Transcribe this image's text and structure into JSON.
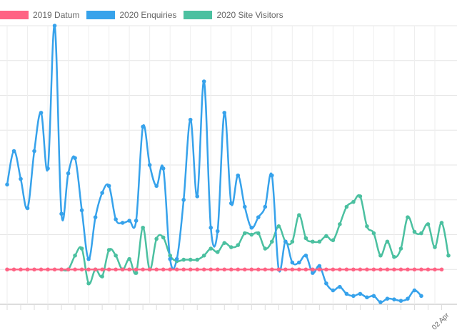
{
  "chart_data": {
    "type": "line",
    "title": "",
    "xlabel": "",
    "ylabel": "",
    "ylim": [
      0,
      400
    ],
    "grid": true,
    "legend_position": "top-left",
    "visible_x_tick_label": "02 Apr",
    "series": [
      {
        "name": "2019 Datum",
        "color": "#ff6384",
        "values": [
          50,
          50,
          50,
          50,
          50,
          50,
          50,
          50,
          50,
          50,
          50,
          50,
          50,
          50,
          50,
          50,
          50,
          50,
          50,
          50,
          50,
          50,
          50,
          50,
          50,
          50,
          50,
          50,
          50,
          50,
          50,
          50,
          50,
          50,
          50,
          50,
          50,
          50,
          50,
          50,
          50,
          50,
          50,
          50,
          50,
          50,
          50,
          50,
          50,
          50,
          50,
          50,
          50,
          50,
          50,
          50,
          50,
          50,
          50,
          50,
          50,
          50,
          50,
          50,
          50
        ]
      },
      {
        "name": "2020 Enquiries",
        "color": "#36a2eb",
        "values": [
          172,
          220,
          180,
          138,
          220,
          275,
          195,
          400,
          130,
          188,
          210,
          135,
          65,
          125,
          160,
          170,
          122,
          117,
          120,
          120,
          255,
          200,
          170,
          195,
          65,
          65,
          150,
          265,
          155,
          320,
          110,
          105,
          275,
          145,
          185,
          140,
          110,
          125,
          140,
          185,
          50,
          90,
          60,
          60,
          70,
          45,
          55,
          30,
          20,
          25,
          15,
          12,
          15,
          10,
          12,
          3,
          8,
          7,
          5,
          8,
          20,
          12
        ]
      },
      {
        "name": "2020 Site Visitors",
        "color": "#4bc0a0",
        "values": [
          null,
          null,
          null,
          null,
          null,
          null,
          null,
          null,
          50,
          50,
          70,
          80,
          30,
          50,
          40,
          78,
          70,
          50,
          65,
          45,
          110,
          50,
          94,
          96,
          70,
          62,
          64,
          64,
          64,
          70,
          80,
          75,
          88,
          82,
          85,
          102,
          100,
          102,
          80,
          90,
          112,
          90,
          90,
          128,
          95,
          90,
          90,
          98,
          92,
          115,
          140,
          147,
          155,
          112,
          102,
          70,
          90,
          68,
          80,
          125,
          104,
          102,
          115,
          82,
          117,
          70
        ]
      }
    ]
  }
}
